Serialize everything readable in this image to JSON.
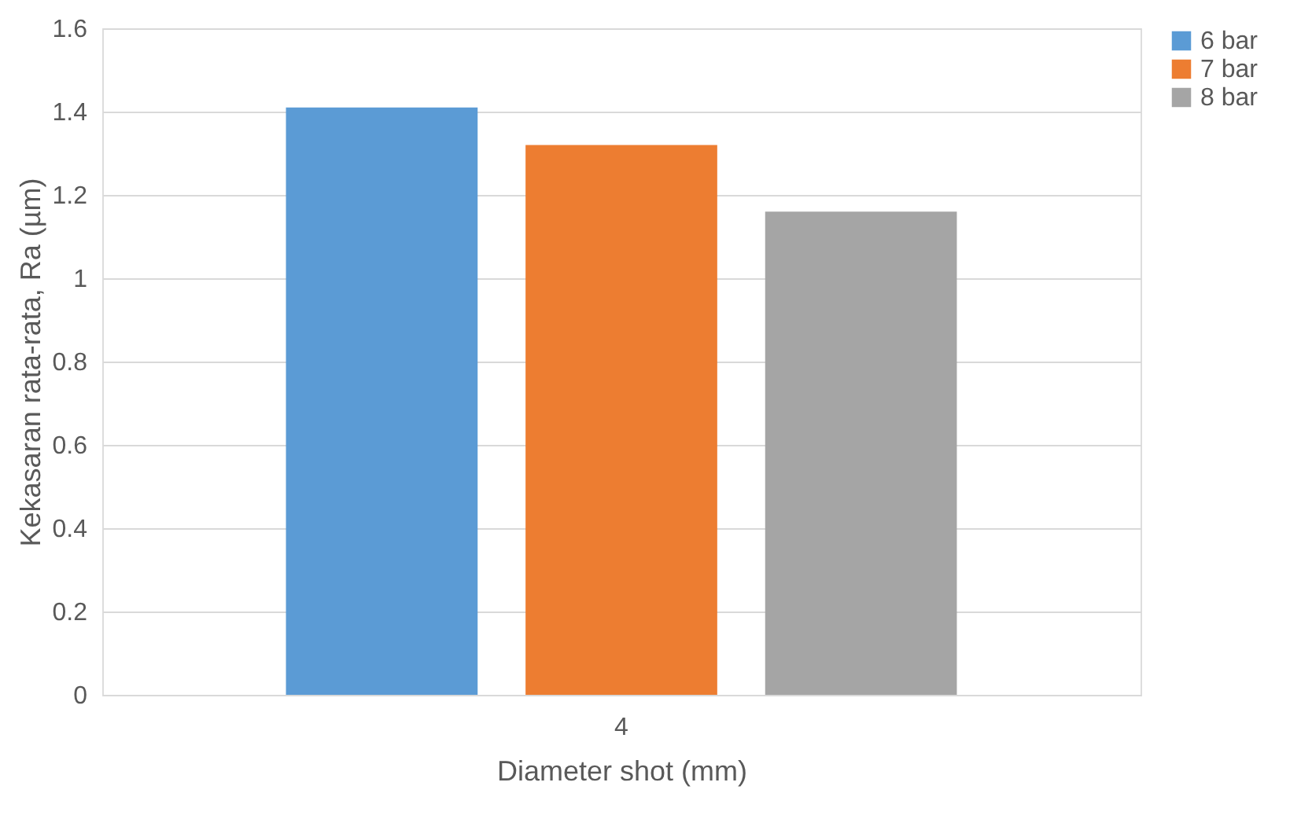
{
  "chart_data": {
    "type": "bar",
    "xlabel": "Diameter shot (mm)",
    "ylabel": "Kekasaran rata-rata, Ra (µm)",
    "categories": [
      "4"
    ],
    "series": [
      {
        "name": "6 bar",
        "color": "#5b9bd5",
        "values": [
          1.41
        ]
      },
      {
        "name": "7 bar",
        "color": "#ed7d31",
        "values": [
          1.32
        ]
      },
      {
        "name": "8 bar",
        "color": "#a5a5a5",
        "values": [
          1.16
        ]
      }
    ],
    "ylim": [
      0,
      1.6
    ],
    "yticks": [
      0,
      0.2,
      0.4,
      0.6,
      0.8,
      1,
      1.2,
      1.4,
      1.6
    ],
    "grid": "y",
    "legend": "right"
  }
}
